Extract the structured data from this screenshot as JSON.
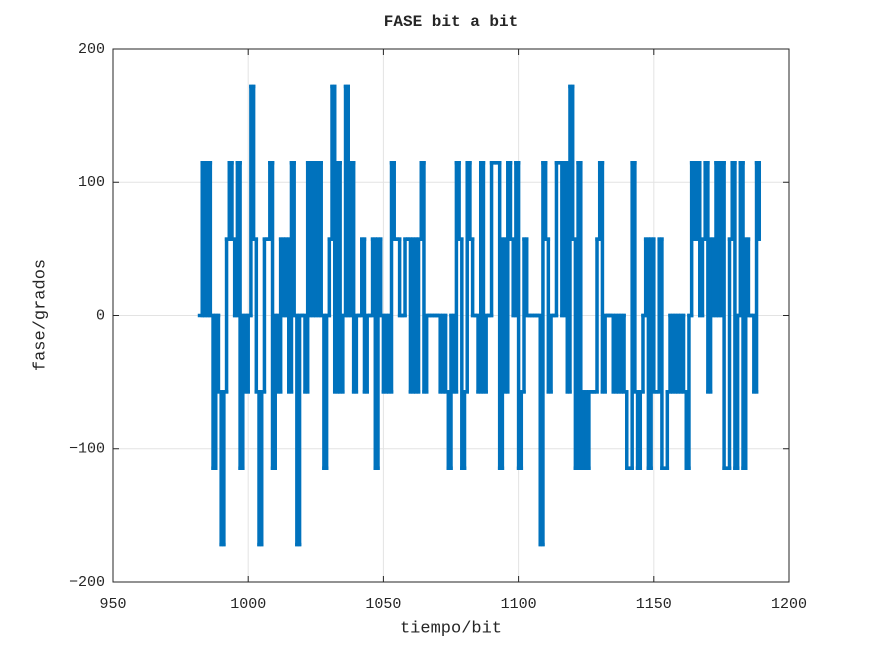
{
  "chart_data": {
    "type": "stairs",
    "title": "FASE bit a bit",
    "xlabel": "tiempo/bit",
    "ylabel": "fase/grados",
    "x": [
      982,
      983,
      984,
      985,
      986,
      987,
      988,
      989,
      990,
      991,
      992,
      993,
      994,
      995,
      996,
      997,
      998,
      999,
      1000,
      1001,
      1002,
      1003,
      1004,
      1005,
      1006,
      1007,
      1008,
      1009,
      1010,
      1011,
      1012,
      1013,
      1014,
      1015,
      1016,
      1017,
      1018,
      1019,
      1020,
      1021,
      1022,
      1023,
      1024,
      1025,
      1026,
      1027,
      1028,
      1029,
      1030,
      1031,
      1032,
      1033,
      1034,
      1035,
      1036,
      1037,
      1038,
      1039,
      1040,
      1041,
      1042,
      1043,
      1044,
      1045,
      1046,
      1047,
      1048,
      1049,
      1050,
      1051,
      1052,
      1053,
      1054,
      1055,
      1056,
      1057,
      1058,
      1059,
      1060,
      1061,
      1062,
      1063,
      1064,
      1065,
      1066,
      1067,
      1068,
      1069,
      1070,
      1071,
      1072,
      1073,
      1074,
      1075,
      1076,
      1077,
      1078,
      1079,
      1080,
      1081,
      1082,
      1083,
      1084,
      1085,
      1086,
      1087,
      1088,
      1089,
      1090,
      1091,
      1092,
      1093,
      1094,
      1095,
      1096,
      1097,
      1098,
      1099,
      1100,
      1101,
      1102,
      1103,
      1104,
      1105,
      1106,
      1107,
      1108,
      1109,
      1110,
      1111,
      1112,
      1113,
      1114,
      1115,
      1116,
      1117,
      1118,
      1119,
      1120,
      1121,
      1122,
      1123,
      1124,
      1125,
      1126,
      1127,
      1128,
      1129,
      1130,
      1131,
      1132,
      1133,
      1134,
      1135,
      1136,
      1137,
      1138,
      1139,
      1140,
      1141,
      1142,
      1143,
      1144,
      1145,
      1146,
      1147,
      1148,
      1149,
      1150,
      1151,
      1152,
      1153,
      1154,
      1155,
      1156,
      1157,
      1158,
      1159,
      1160,
      1161,
      1162,
      1163,
      1164,
      1165,
      1166,
      1167,
      1168,
      1169,
      1170,
      1171,
      1172,
      1173,
      1174,
      1175,
      1176,
      1177,
      1178,
      1179,
      1180,
      1181,
      1182,
      1183,
      1184,
      1185,
      1186,
      1187,
      1188,
      1189
    ],
    "series": [
      {
        "color": "#0072bd",
        "values": [
          0,
          114.6,
          0,
          114.6,
          0,
          -114.6,
          0,
          -57.3,
          -171.9,
          -57.3,
          57.3,
          114.6,
          57.3,
          0,
          114.6,
          -114.6,
          0,
          -57.3,
          0,
          171.9,
          57.3,
          -57.3,
          -171.9,
          -57.3,
          57.3,
          57.3,
          114.6,
          -114.6,
          0,
          -57.3,
          57.3,
          0,
          57.3,
          -57.3,
          114.6,
          0,
          -171.9,
          0,
          0,
          -57.3,
          114.6,
          0,
          114.6,
          0,
          114.6,
          0,
          -114.6,
          0,
          57.3,
          171.9,
          -57.3,
          114.6,
          -57.3,
          0,
          171.9,
          0,
          114.6,
          -57.3,
          0,
          0,
          57.3,
          -57.3,
          0,
          0,
          57.3,
          -114.6,
          57.3,
          0,
          -57.3,
          0,
          -57.3,
          114.6,
          57.3,
          57.3,
          0,
          0,
          57.3,
          57.3,
          -57.3,
          57.3,
          -57.3,
          57.3,
          114.6,
          -57.3,
          0,
          0,
          0,
          0,
          0,
          -57.3,
          0,
          -57.3,
          -114.6,
          0,
          -57.3,
          114.6,
          57.3,
          -114.6,
          -57.3,
          114.6,
          57.3,
          0,
          0,
          -57.3,
          114.6,
          -57.3,
          0,
          0,
          114.6,
          114.6,
          114.6,
          -114.6,
          57.3,
          -57.3,
          114.6,
          57.3,
          0,
          114.6,
          -114.6,
          -57.3,
          57.3,
          0,
          0,
          0,
          0,
          0,
          -171.9,
          114.6,
          57.3,
          -57.3,
          0,
          0,
          114.6,
          114.6,
          0,
          114.6,
          -57.3,
          171.9,
          57.3,
          -114.6,
          114.6,
          -114.6,
          -57.3,
          -114.6,
          -57.3,
          -57.3,
          -57.3,
          57.3,
          114.6,
          -57.3,
          0,
          0,
          0,
          -57.3,
          0,
          -57.3,
          0,
          -57.3,
          -114.6,
          -114.6,
          114.6,
          -57.3,
          -114.6,
          -57.3,
          0,
          57.3,
          -114.6,
          57.3,
          -57.3,
          -57.3,
          57.3,
          -114.6,
          -114.6,
          -57.3,
          0,
          -57.3,
          0,
          -57.3,
          0,
          -57.3,
          -114.6,
          0,
          114.6,
          57.3,
          114.6,
          0,
          57.3,
          114.6,
          -57.3,
          57.3,
          0,
          114.6,
          0,
          114.6,
          -114.6,
          -114.6,
          57.3,
          114.6,
          -114.6,
          0,
          114.6,
          -114.6,
          57.3,
          0,
          0,
          -57.3,
          114.6,
          57.3
        ]
      }
    ],
    "xlim": [
      950,
      1200
    ],
    "xticks": [
      950,
      1000,
      1050,
      1100,
      1150,
      1200
    ],
    "ylim": [
      -200,
      200
    ],
    "yticks": [
      {
        "value": -200,
        "label": "−200"
      },
      {
        "value": -100,
        "label": "−100"
      },
      0,
      100,
      200
    ],
    "grid": true
  }
}
